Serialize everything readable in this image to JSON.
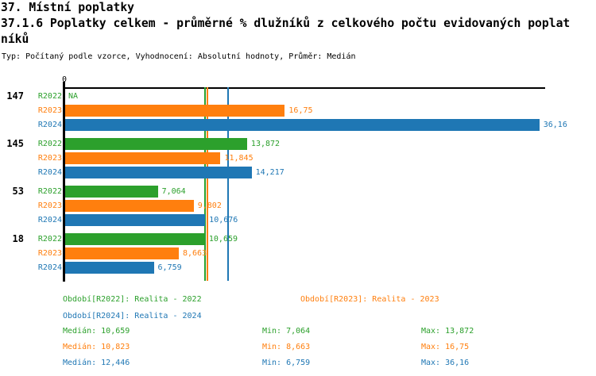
{
  "header": {
    "title": "37. Místní poplatky",
    "subtitle_line1": "37.1.6 Poplatky celkem - průměrné % dlužníků z celkového počtu evidovaných poplat",
    "subtitle_line2": "níků",
    "meta": "Typ: Počítaný podle vzorce, Vyhodnocení: Absolutní hodnoty, Průměr: Medián"
  },
  "colors": {
    "r2022": "#2ca02c",
    "r2023": "#ff7f0e",
    "r2024": "#1f77b4",
    "axis": "#000000"
  },
  "chart_data": {
    "type": "bar",
    "orientation": "horizontal",
    "x_axis": {
      "zero_label": "0",
      "xlim": [
        0,
        36.6
      ],
      "grid": false
    },
    "categories": [
      "147",
      "145",
      "53",
      "18"
    ],
    "series": [
      {
        "name": "R2022",
        "color_key": "r2022",
        "values": [
          null,
          13.872,
          7.064,
          10.659
        ],
        "labels": [
          "NA",
          "13,872",
          "7,064",
          "10,659"
        ]
      },
      {
        "name": "R2023",
        "color_key": "r2023",
        "values": [
          16.75,
          11.845,
          9.802,
          8.663
        ],
        "labels": [
          "16,75",
          "11,845",
          "9,802",
          "8,663"
        ]
      },
      {
        "name": "R2024",
        "color_key": "r2024",
        "values": [
          36.16,
          14.217,
          10.676,
          6.759
        ],
        "labels": [
          "36,16",
          "14,217",
          "10,676",
          "6,759"
        ]
      }
    ],
    "median_lines": [
      {
        "series": "R2022",
        "value": 10.659
      },
      {
        "series": "R2023",
        "value": 10.823
      },
      {
        "series": "R2024",
        "value": 12.446
      }
    ]
  },
  "legend": {
    "items": [
      {
        "series": "R2022",
        "label": "Období[R2022]: Realita - 2022"
      },
      {
        "series": "R2023",
        "label": "Období[R2023]: Realita - 2023"
      },
      {
        "series": "R2024",
        "label": "Období[R2024]: Realita - 2024"
      }
    ]
  },
  "stats": {
    "rows": [
      {
        "series": "R2022",
        "median": "Medián: 10,659",
        "min": "Min: 7,064",
        "max": "Max: 13,872"
      },
      {
        "series": "R2023",
        "median": "Medián: 10,823",
        "min": "Min: 8,663",
        "max": "Max: 16,75"
      },
      {
        "series": "R2024",
        "median": "Medián: 12,446",
        "min": "Min: 6,759",
        "max": "Max: 36,16"
      }
    ]
  }
}
